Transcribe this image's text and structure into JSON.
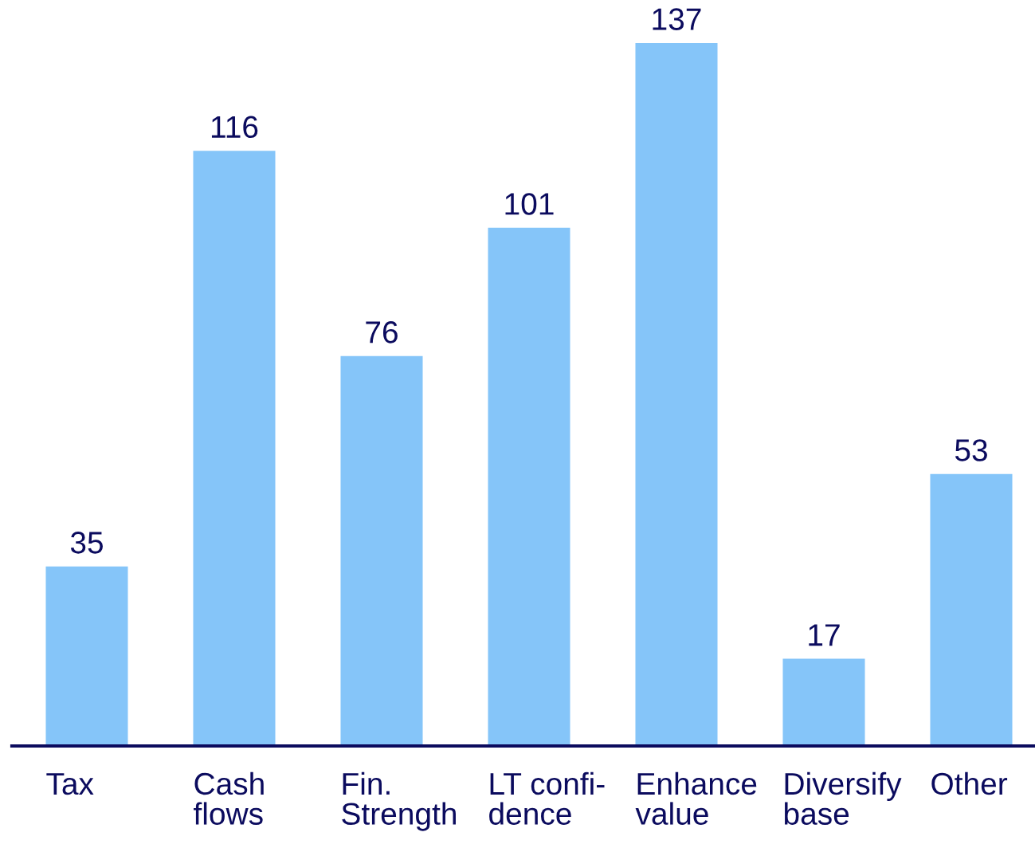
{
  "chart_data": {
    "type": "bar",
    "categories": [
      "Tax",
      "Cash\nflows",
      "Fin.\nStrength",
      "LT confi-\ndence",
      "Enhance\nvalue",
      "Diversify\nbase",
      "Other"
    ],
    "values": [
      35,
      116,
      76,
      101,
      137,
      17,
      53
    ],
    "color": "#85c5f9",
    "data_labels": true
  }
}
